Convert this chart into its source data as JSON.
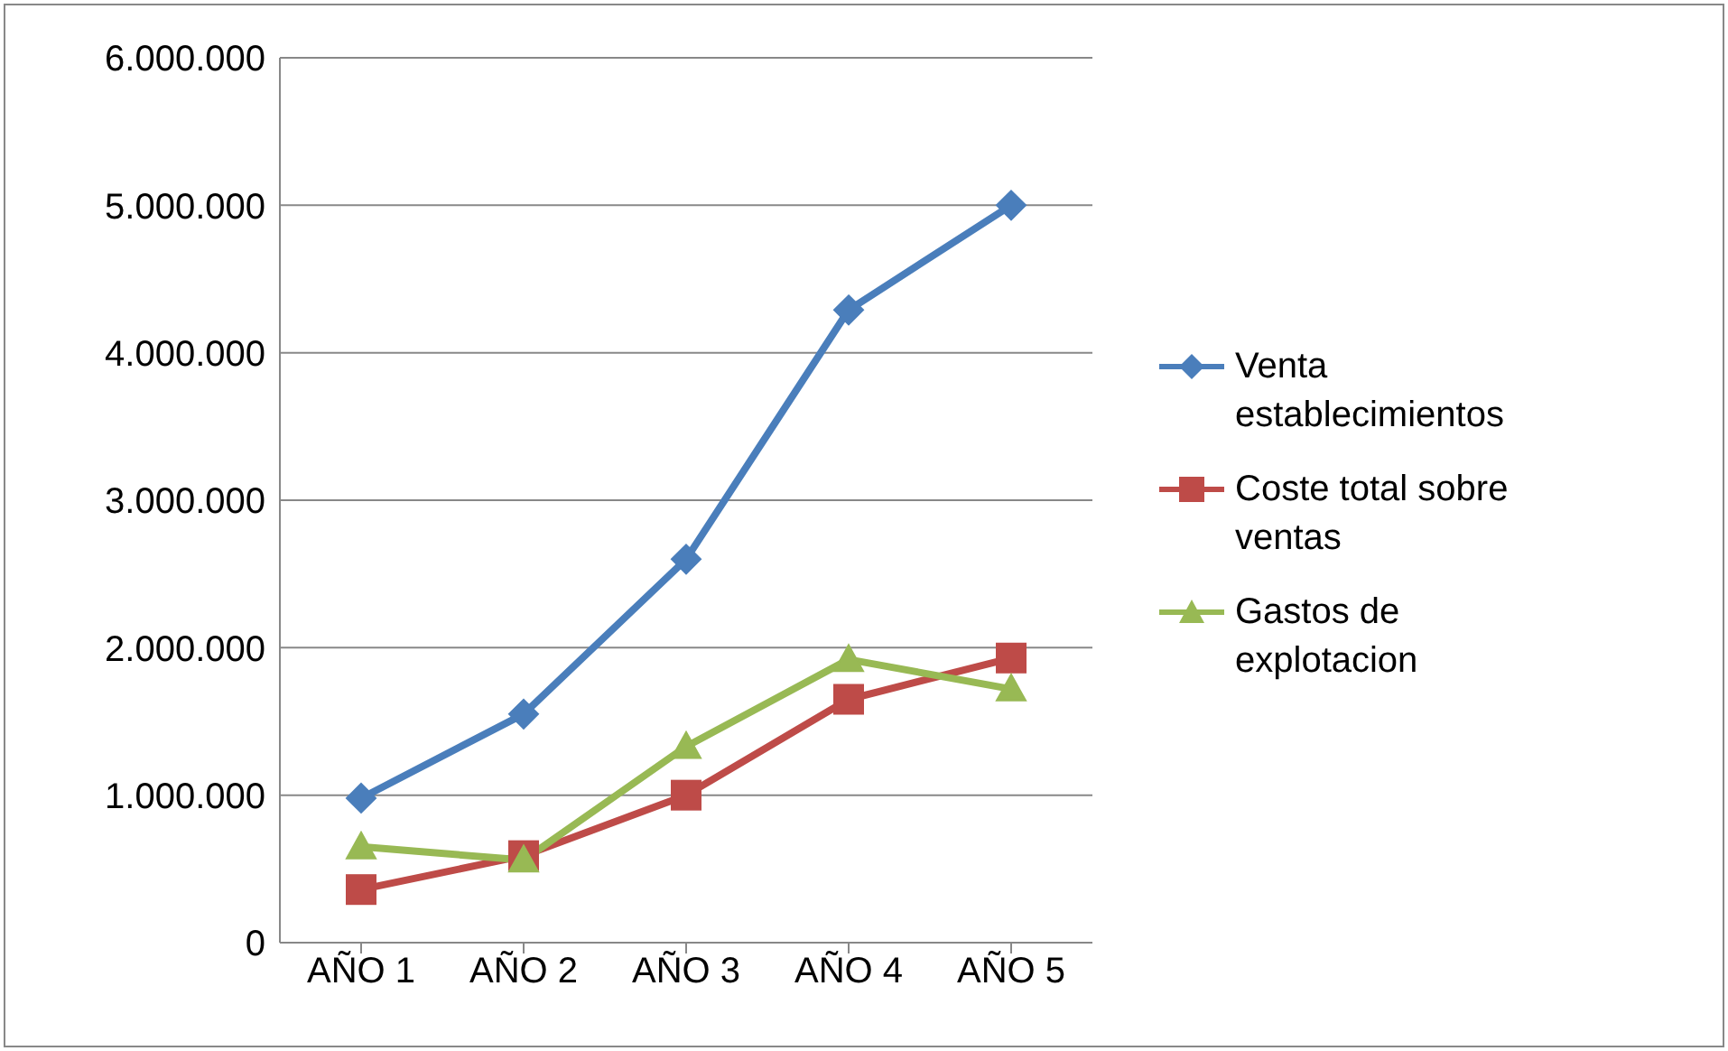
{
  "chart_data": {
    "type": "line",
    "categories": [
      "AÑO 1",
      "AÑO 2",
      "AÑO 3",
      "AÑO 4",
      "AÑO 5"
    ],
    "series": [
      {
        "name": "Venta establecimientos",
        "color": "#4a7ebb",
        "marker": "diamond",
        "values": [
          980000,
          1550000,
          2600000,
          4290000,
          5000000
        ]
      },
      {
        "name": "Coste total sobre ventas",
        "color": "#be4b48",
        "marker": "square",
        "values": [
          360000,
          590000,
          1000000,
          1650000,
          1930000
        ]
      },
      {
        "name": "Gastos de explotacion",
        "color": "#98b954",
        "marker": "triangle",
        "values": [
          650000,
          560000,
          1330000,
          1920000,
          1720000
        ]
      }
    ],
    "ylim": [
      0,
      6000000
    ],
    "yticks": [
      0,
      {
        "value": 1000000,
        "label": "1.000.000"
      },
      {
        "value": 2000000,
        "label": "2.000.000"
      },
      {
        "value": 3000000,
        "label": "3.000.000"
      },
      {
        "value": 4000000,
        "label": "4.000.000"
      },
      {
        "value": 5000000,
        "label": "5.000.000"
      },
      {
        "value": 6000000,
        "label": "6.000.000"
      }
    ],
    "grid": "y",
    "legend": "right"
  }
}
